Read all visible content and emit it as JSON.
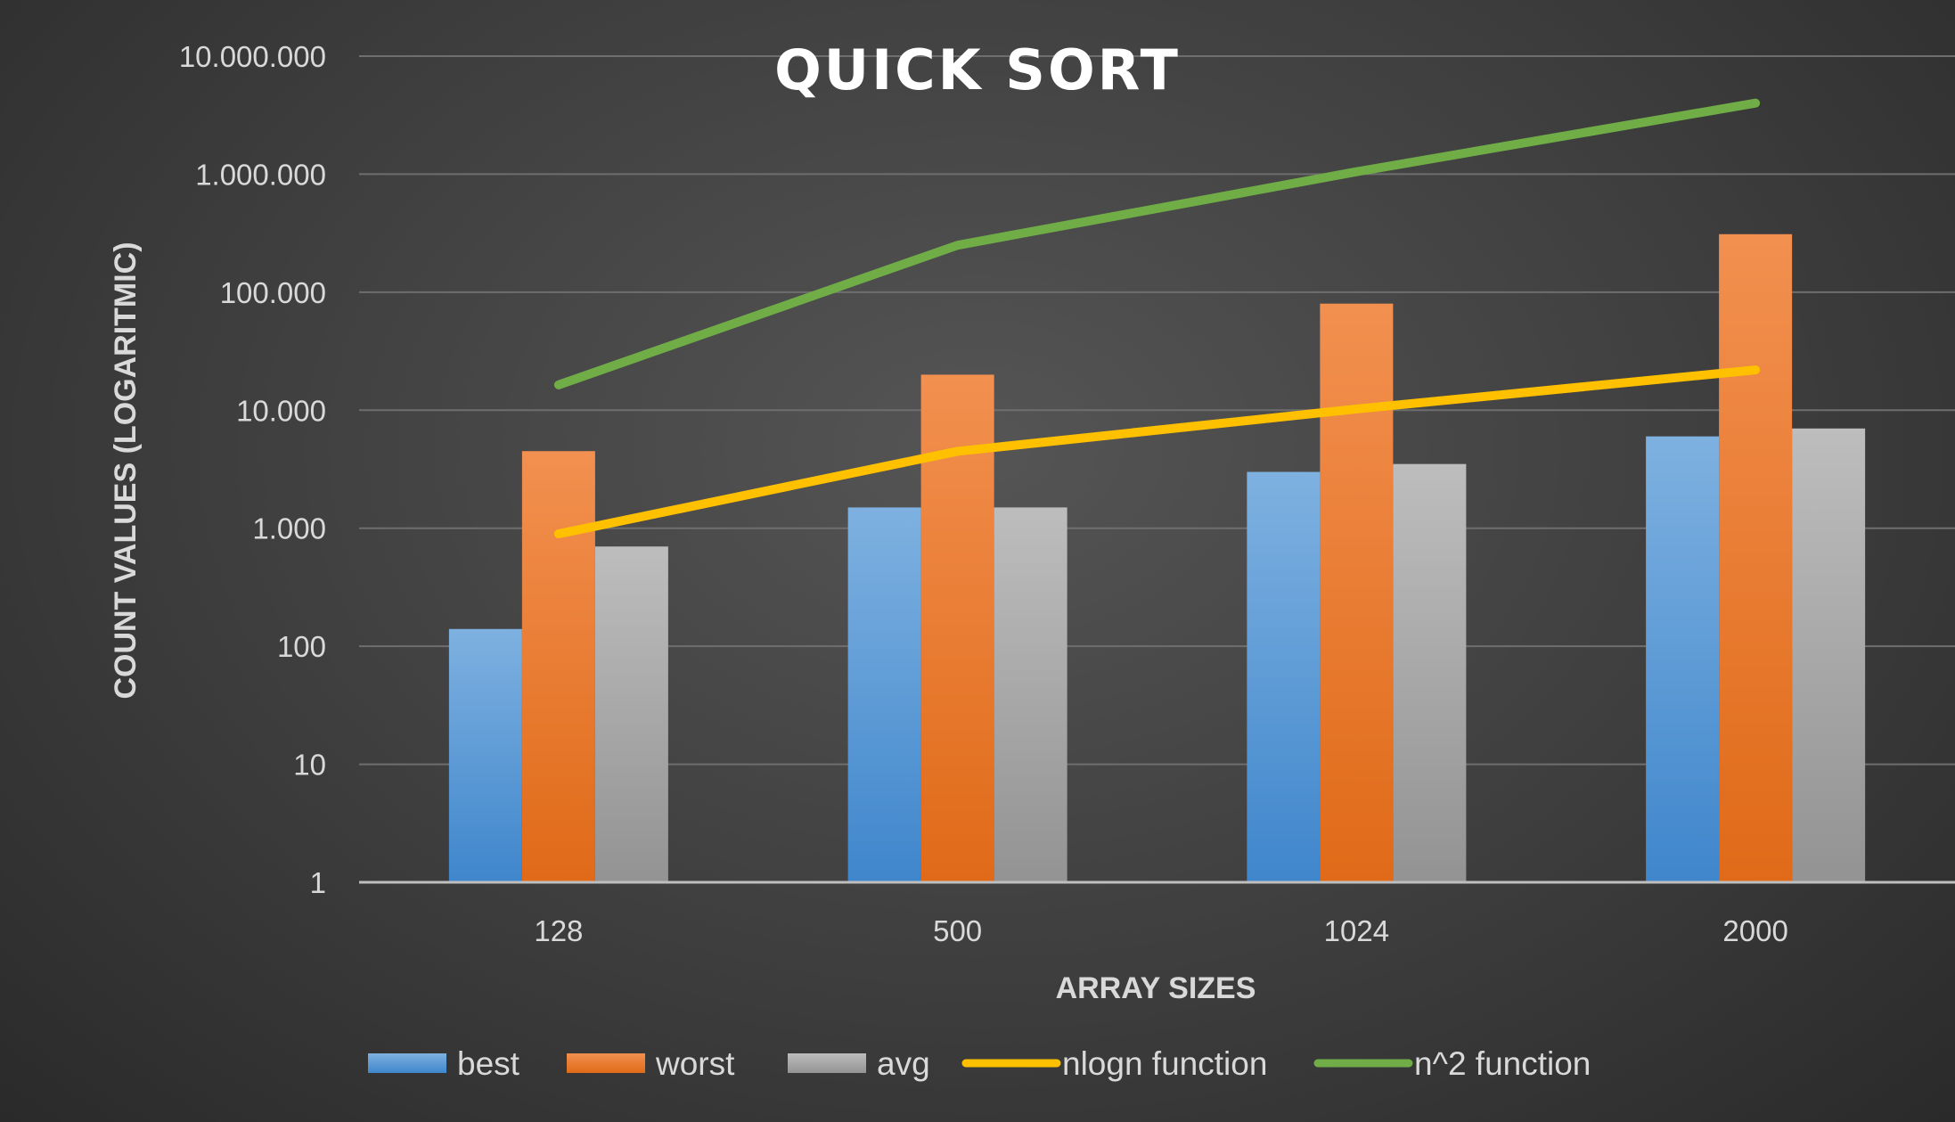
{
  "chart_data": {
    "type": "bar",
    "title": "QUICK SORT",
    "xlabel": "ARRAY SIZES",
    "ylabel": "COUNT VALUES (LOGARITMIC)",
    "yscale": "log",
    "ylim": [
      1,
      10000000
    ],
    "yticks": [
      1,
      10,
      100,
      1000,
      10000,
      100000,
      1000000,
      10000000
    ],
    "ytick_labels": [
      "1",
      "10",
      "100",
      "1.000",
      "10.000",
      "100.000",
      "1.000.000",
      "10.000.000"
    ],
    "categories": [
      "128",
      "500",
      "1024",
      "2000"
    ],
    "grid": true,
    "legend": "bottom",
    "series": [
      {
        "name": "best",
        "kind": "bar",
        "color": "#5b9bd5",
        "values": [
          140,
          1500,
          3000,
          6000
        ]
      },
      {
        "name": "worst",
        "kind": "bar",
        "color": "#ed7d31",
        "values": [
          4500,
          20000,
          80000,
          310000
        ]
      },
      {
        "name": "avg",
        "kind": "bar",
        "color": "#a5a5a5",
        "values": [
          700,
          1500,
          3500,
          7000
        ]
      },
      {
        "name": "nlogn function",
        "kind": "line",
        "color": "#ffc000",
        "values": [
          896,
          4483,
          10240,
          21932
        ]
      },
      {
        "name": "n^2 function",
        "kind": "line",
        "color": "#70ad47",
        "values": [
          16384,
          250000,
          1048576,
          4000000
        ]
      }
    ]
  }
}
